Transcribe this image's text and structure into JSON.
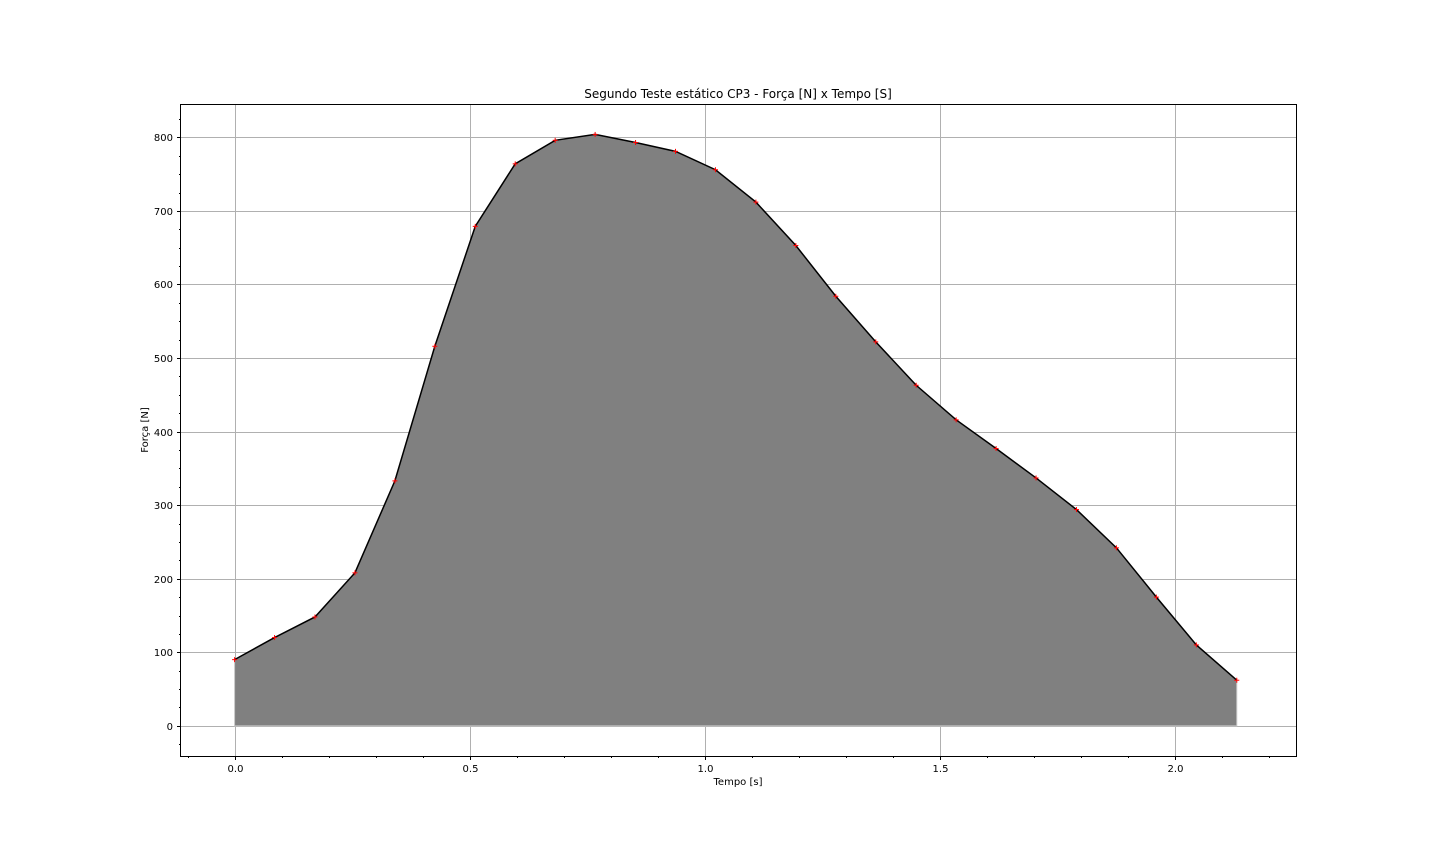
{
  "chart_data": {
    "type": "area",
    "title": "Segundo Teste estático CP3  - Força [N] x Tempo [S]",
    "xlabel": "Tempo [s]",
    "ylabel": "Força [N]",
    "xlim": [
      -0.114,
      2.258
    ],
    "ylim": [
      -41,
      844
    ],
    "xticks": [
      0.0,
      0.5,
      1.0,
      1.5,
      2.0
    ],
    "xtick_labels": [
      "0.0",
      "0.5",
      "1.0",
      "1.5",
      "2.0"
    ],
    "yticks": [
      0,
      100,
      200,
      300,
      400,
      500,
      600,
      700,
      800
    ],
    "ytick_labels": [
      "0",
      "100",
      "200",
      "300",
      "400",
      "500",
      "600",
      "700",
      "800"
    ],
    "grid": true,
    "fill_color": "#808080",
    "line_color": "#000000",
    "marker_color": "#ff0000",
    "x": [
      0.0,
      0.085,
      0.171,
      0.256,
      0.341,
      0.426,
      0.512,
      0.597,
      0.682,
      0.767,
      0.853,
      0.938,
      1.023,
      1.109,
      1.194,
      1.279,
      1.364,
      1.45,
      1.535,
      1.62,
      1.705,
      1.791,
      1.876,
      1.961,
      2.046,
      2.132
    ],
    "values": [
      90,
      120,
      148,
      208,
      333,
      516,
      679,
      764,
      796,
      804,
      793,
      781,
      756,
      712,
      653,
      584,
      522,
      463,
      416,
      377,
      337,
      294,
      242,
      175,
      110,
      62
    ]
  }
}
